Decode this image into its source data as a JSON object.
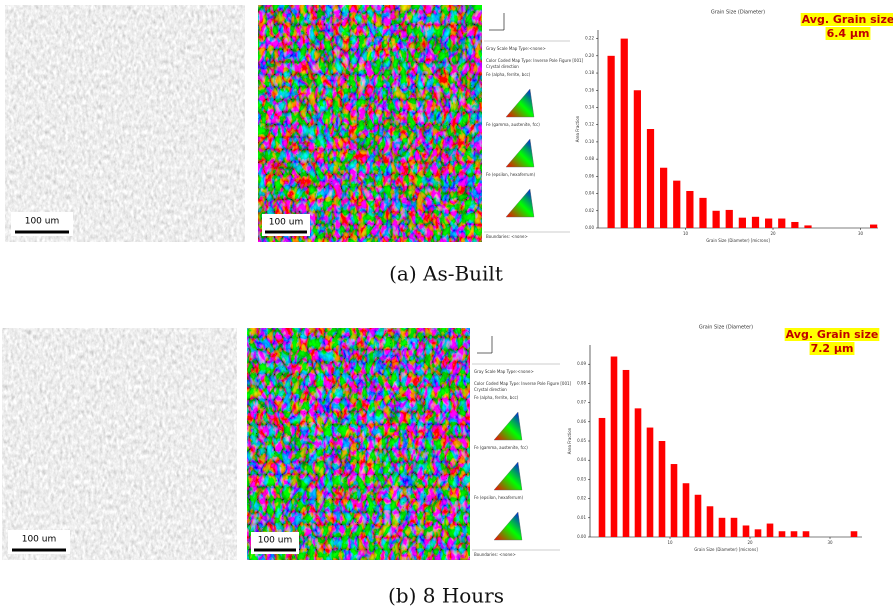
{
  "panels": [
    {
      "caption": "(a) As-Built",
      "scale_bar_sem": "100 um",
      "scale_bar_ebsd": "100 um",
      "legend": [
        "Gray Scale Map Type:<none>",
        "Color Coded Map Type: Inverse Pole Figure [001]",
        "Crystal direction",
        "Fe (alpha, ferrite, bcc)",
        "Fe (gamma, austenite, fcc)",
        "Fe (epsilon, hexaferrum)",
        "Boundaries: <none>"
      ]
    },
    {
      "caption": "(b) 8 Hours",
      "scale_bar_sem": "100 um",
      "scale_bar_ebsd": "100 um",
      "legend": [
        "Gray Scale Map Type:<none>",
        "Color Coded Map Type: Inverse Pole Figure [001]",
        "Crystal direction",
        "Fe (alpha, ferrite, bcc)",
        "Fe (gamma, austenite, fcc)",
        "Fe (epsilon, hexaferrum)",
        "Boundaries: <none>"
      ]
    }
  ],
  "chart_data": [
    {
      "type": "bar",
      "title": "Grain Size (Diameter)",
      "x_label": "Grain Size (Diameter) [microns]",
      "y_label": "Area Fraction",
      "annotation": [
        "Avg. Grain size",
        "6.4 μm"
      ],
      "color": "#ff0000",
      "x": [
        1.5,
        3,
        4.5,
        6,
        7.5,
        9,
        10.5,
        12,
        13.5,
        15,
        16.5,
        18,
        19.5,
        21,
        22.5,
        24,
        25.5,
        27,
        28.5,
        30,
        31.5
      ],
      "values": [
        0.2,
        0.22,
        0.16,
        0.115,
        0.07,
        0.055,
        0.043,
        0.035,
        0.02,
        0.021,
        0.012,
        0.013,
        0.011,
        0.011,
        0.007,
        0.003,
        0,
        0,
        0,
        0,
        0.004
      ],
      "xlim": [
        0,
        32
      ],
      "xticks": [
        10,
        20,
        30
      ],
      "ylim": [
        0,
        0.23
      ],
      "yticks": [
        {
          "value": 0,
          "label": "0.00"
        },
        {
          "value": 0.02,
          "label": "0.02"
        },
        {
          "value": 0.04,
          "label": "0.04"
        },
        {
          "value": 0.06,
          "label": "0.06"
        },
        {
          "value": 0.08,
          "label": "0.08"
        },
        {
          "value": 0.1,
          "label": "0.10"
        },
        {
          "value": 0.12,
          "label": "0.12"
        },
        {
          "value": 0.14,
          "label": "0.14"
        },
        {
          "value": 0.16,
          "label": "0.16"
        },
        {
          "value": 0.18,
          "label": "0.18"
        },
        {
          "value": 0.2,
          "label": "0.20"
        },
        {
          "value": 0.22,
          "label": "0.22"
        }
      ],
      "grid": false
    },
    {
      "type": "bar",
      "title": "Grain Size (Diameter)",
      "x_label": "Grain Size (Diameter) [microns]",
      "y_label": "Area Fraction",
      "annotation": [
        "Avg. Grain size",
        "7.2 μm"
      ],
      "color": "#ff0000",
      "x": [
        1.5,
        3,
        4.5,
        6,
        7.5,
        9,
        10.5,
        12,
        13.5,
        15,
        16.5,
        18,
        19.5,
        21,
        22.5,
        24,
        25.5,
        27,
        28.5,
        30,
        31.5,
        33
      ],
      "values": [
        0.062,
        0.094,
        0.087,
        0.067,
        0.057,
        0.05,
        0.038,
        0.028,
        0.022,
        0.016,
        0.01,
        0.01,
        0.006,
        0.004,
        0.007,
        0.003,
        0.003,
        0.003,
        0,
        0,
        0,
        0.003
      ],
      "xlim": [
        0,
        34
      ],
      "xticks": [
        10,
        20,
        30
      ],
      "ylim": [
        0,
        0.1
      ],
      "yticks": [
        {
          "value": 0,
          "label": "0.00"
        },
        {
          "value": 0.01,
          "label": "0.01"
        },
        {
          "value": 0.02,
          "label": "0.02"
        },
        {
          "value": 0.03,
          "label": "0.03"
        },
        {
          "value": 0.04,
          "label": "0.04"
        },
        {
          "value": 0.05,
          "label": "0.05"
        },
        {
          "value": 0.06,
          "label": "0.06"
        },
        {
          "value": 0.07,
          "label": "0.07"
        },
        {
          "value": 0.08,
          "label": "0.08"
        },
        {
          "value": 0.09,
          "label": "0.09"
        }
      ],
      "grid": false
    }
  ]
}
